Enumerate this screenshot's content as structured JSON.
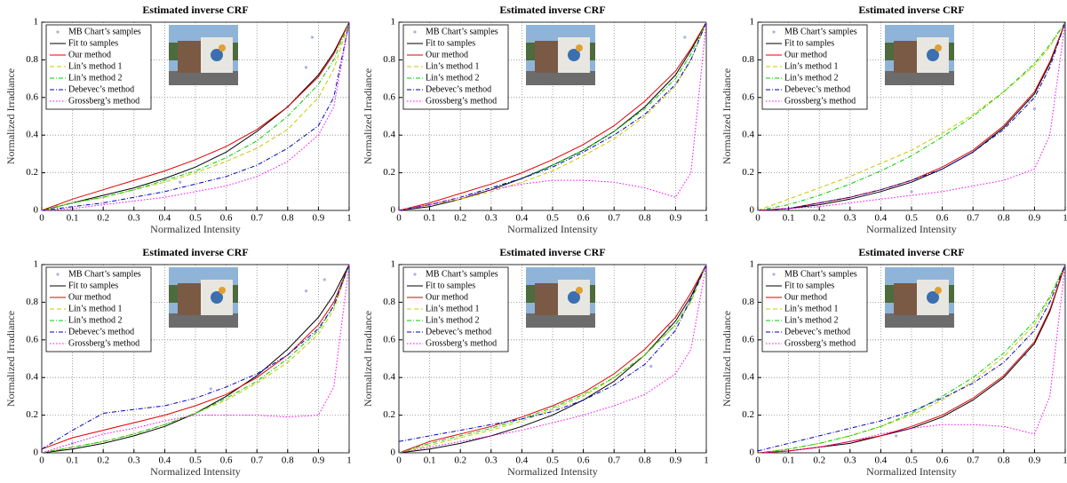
{
  "chart_data": [
    {
      "type": "line",
      "title": "Estimated inverse CRF",
      "xlabel": "Normalized Intensity",
      "ylabel": "Normalized Irradiance",
      "x": [
        0,
        0.1,
        0.2,
        0.3,
        0.4,
        0.5,
        0.6,
        0.7,
        0.8,
        0.9,
        0.95,
        1
      ],
      "xlim": [
        0,
        1
      ],
      "ylim": [
        0,
        1
      ],
      "xticks": [
        0,
        0.1,
        0.2,
        0.3,
        0.4,
        0.5,
        0.6,
        0.7,
        0.8,
        0.9,
        1
      ],
      "yticks": [
        0,
        0.2,
        0.4,
        0.6,
        0.8,
        1
      ],
      "grid": true,
      "legend": "upper-left",
      "series": [
        {
          "name": "MB Chart’s samples",
          "color": "#a8b0e8",
          "marker": "dot",
          "x": [
            0.05,
            0.45,
            0.8,
            0.86,
            0.88
          ],
          "values": [
            0.02,
            0.15,
            0.55,
            0.76,
            0.92
          ]
        },
        {
          "name": "Fit to samples",
          "color": "#000000",
          "dash": "solid",
          "values": [
            0,
            0.04,
            0.08,
            0.12,
            0.17,
            0.23,
            0.31,
            0.42,
            0.55,
            0.72,
            0.84,
            1
          ]
        },
        {
          "name": "Our method",
          "color": "#e00000",
          "dash": "solid",
          "values": [
            0,
            0.06,
            0.11,
            0.16,
            0.21,
            0.27,
            0.34,
            0.43,
            0.55,
            0.71,
            0.83,
            1
          ]
        },
        {
          "name": "Lin’s method 1",
          "color": "#c8c800",
          "dash": "dashed",
          "values": [
            0,
            0.04,
            0.07,
            0.11,
            0.15,
            0.2,
            0.26,
            0.33,
            0.43,
            0.6,
            0.75,
            1
          ]
        },
        {
          "name": "Lin’s method 2",
          "color": "#00cc00",
          "dash": "dashdot",
          "values": [
            0,
            0.04,
            0.07,
            0.11,
            0.16,
            0.21,
            0.28,
            0.37,
            0.5,
            0.67,
            0.8,
            1
          ]
        },
        {
          "name": "Debevec’s method",
          "color": "#0000c0",
          "dash": "dashdot",
          "values": [
            0,
            0.02,
            0.04,
            0.07,
            0.1,
            0.14,
            0.18,
            0.24,
            0.33,
            0.45,
            0.6,
            1
          ]
        },
        {
          "name": "Grossberg’s method",
          "color": "#ff00ff",
          "dash": "dotted",
          "values": [
            0,
            0.01,
            0.03,
            0.05,
            0.07,
            0.1,
            0.13,
            0.18,
            0.26,
            0.4,
            0.55,
            1
          ]
        }
      ]
    },
    {
      "type": "line",
      "title": "Estimated inverse CRF",
      "xlabel": "Normalized Intensity",
      "ylabel": "Normalized Irradiance",
      "x": [
        0,
        0.1,
        0.2,
        0.3,
        0.4,
        0.5,
        0.6,
        0.7,
        0.8,
        0.9,
        0.95,
        1
      ],
      "xlim": [
        0,
        1
      ],
      "ylim": [
        0,
        1
      ],
      "xticks": [
        0,
        0.1,
        0.2,
        0.3,
        0.4,
        0.5,
        0.6,
        0.7,
        0.8,
        0.9,
        1
      ],
      "yticks": [
        0,
        0.2,
        0.4,
        0.6,
        0.8,
        1
      ],
      "grid": true,
      "legend": "upper-left",
      "series": [
        {
          "name": "MB Chart’s samples",
          "color": "#a8b0e8",
          "marker": "dot",
          "x": [
            0.1,
            0.93
          ],
          "values": [
            0.03,
            0.92
          ]
        },
        {
          "name": "Fit to samples",
          "color": "#000000",
          "dash": "solid",
          "values": [
            0,
            0.02,
            0.06,
            0.11,
            0.17,
            0.24,
            0.32,
            0.42,
            0.55,
            0.72,
            0.85,
            1
          ]
        },
        {
          "name": "Our method",
          "color": "#e00000",
          "dash": "solid",
          "values": [
            0,
            0.04,
            0.09,
            0.14,
            0.2,
            0.27,
            0.35,
            0.45,
            0.58,
            0.74,
            0.86,
            1
          ]
        },
        {
          "name": "Lin’s method 1",
          "color": "#c8c800",
          "dash": "dashed",
          "values": [
            0,
            0.03,
            0.06,
            0.1,
            0.15,
            0.21,
            0.29,
            0.38,
            0.5,
            0.66,
            0.8,
            1
          ]
        },
        {
          "name": "Lin’s method 2",
          "color": "#00cc00",
          "dash": "dashdot",
          "values": [
            0,
            0.03,
            0.07,
            0.12,
            0.17,
            0.24,
            0.32,
            0.42,
            0.54,
            0.7,
            0.83,
            1
          ]
        },
        {
          "name": "Debevec’s method",
          "color": "#0000c0",
          "dash": "dashdot",
          "values": [
            0,
            0.03,
            0.07,
            0.12,
            0.17,
            0.23,
            0.31,
            0.4,
            0.51,
            0.67,
            0.8,
            1
          ]
        },
        {
          "name": "Grossberg’s method",
          "color": "#ff00ff",
          "dash": "dotted",
          "values": [
            0,
            0.03,
            0.07,
            0.11,
            0.14,
            0.16,
            0.16,
            0.15,
            0.12,
            0.07,
            0.2,
            1
          ]
        }
      ]
    },
    {
      "type": "line",
      "title": "Estimated inverse CRF",
      "xlabel": "Normalized Intensity",
      "ylabel": "Normalized Irradiance",
      "x": [
        0,
        0.1,
        0.2,
        0.3,
        0.4,
        0.5,
        0.6,
        0.7,
        0.8,
        0.9,
        0.95,
        1
      ],
      "xlim": [
        0,
        1
      ],
      "ylim": [
        0,
        1
      ],
      "xticks": [
        0,
        0.1,
        0.2,
        0.3,
        0.4,
        0.5,
        0.6,
        0.7,
        0.8,
        0.9,
        1
      ],
      "yticks": [
        0,
        0.2,
        0.4,
        0.6,
        0.8,
        1
      ],
      "grid": true,
      "legend": "upper-left",
      "series": [
        {
          "name": "MB Chart’s samples",
          "color": "#a8b0e8",
          "marker": "dot",
          "x": [
            0.5,
            0.88,
            0.9
          ],
          "values": [
            0.1,
            0.58,
            0.54
          ]
        },
        {
          "name": "Fit to samples",
          "color": "#000000",
          "dash": "solid",
          "values": [
            0,
            0.01,
            0.03,
            0.06,
            0.1,
            0.15,
            0.22,
            0.31,
            0.44,
            0.62,
            0.78,
            1
          ]
        },
        {
          "name": "Our method",
          "color": "#e00000",
          "dash": "solid",
          "values": [
            0,
            0.01,
            0.04,
            0.07,
            0.11,
            0.16,
            0.23,
            0.32,
            0.45,
            0.63,
            0.79,
            1
          ]
        },
        {
          "name": "Lin’s method 1",
          "color": "#c8c800",
          "dash": "dashed",
          "values": [
            0,
            0.06,
            0.12,
            0.18,
            0.25,
            0.32,
            0.41,
            0.51,
            0.63,
            0.77,
            0.87,
            1
          ]
        },
        {
          "name": "Lin’s method 2",
          "color": "#00cc00",
          "dash": "dashdot",
          "values": [
            0,
            0.03,
            0.08,
            0.14,
            0.21,
            0.29,
            0.39,
            0.5,
            0.63,
            0.78,
            0.88,
            1
          ]
        },
        {
          "name": "Debevec’s method",
          "color": "#0000c0",
          "dash": "dashdot",
          "values": [
            0,
            0.01,
            0.04,
            0.07,
            0.11,
            0.16,
            0.22,
            0.31,
            0.43,
            0.6,
            0.76,
            1
          ]
        },
        {
          "name": "Grossberg’s method",
          "color": "#ff00ff",
          "dash": "dotted",
          "values": [
            0,
            0.01,
            0.02,
            0.04,
            0.06,
            0.08,
            0.1,
            0.13,
            0.16,
            0.22,
            0.4,
            1
          ]
        }
      ]
    },
    {
      "type": "line",
      "title": "Estimated inverse CRF",
      "xlabel": "Normalized Intensity",
      "ylabel": "Normalized Irradiance",
      "x": [
        0,
        0.1,
        0.2,
        0.3,
        0.4,
        0.5,
        0.6,
        0.7,
        0.8,
        0.9,
        0.95,
        1
      ],
      "xlim": [
        0,
        1
      ],
      "ylim": [
        0,
        1
      ],
      "xticks": [
        0,
        0.1,
        0.2,
        0.3,
        0.4,
        0.5,
        0.6,
        0.7,
        0.8,
        0.9,
        1
      ],
      "yticks": [
        0,
        0.2,
        0.4,
        0.6,
        0.8,
        1
      ],
      "grid": true,
      "legend": "upper-left",
      "series": [
        {
          "name": "MB Chart’s samples",
          "color": "#a8b0e8",
          "marker": "dot",
          "x": [
            0.1,
            0.55,
            0.86,
            0.92
          ],
          "values": [
            0.05,
            0.34,
            0.86,
            0.92
          ]
        },
        {
          "name": "Fit to samples",
          "color": "#000000",
          "dash": "solid",
          "values": [
            0,
            0.02,
            0.05,
            0.09,
            0.14,
            0.21,
            0.3,
            0.41,
            0.55,
            0.72,
            0.84,
            1
          ]
        },
        {
          "name": "Our method",
          "color": "#e00000",
          "dash": "solid",
          "values": [
            0.02,
            0.08,
            0.12,
            0.16,
            0.2,
            0.25,
            0.31,
            0.4,
            0.52,
            0.68,
            0.8,
            1
          ]
        },
        {
          "name": "Lin’s method 1",
          "color": "#c8c800",
          "dash": "dashed",
          "values": [
            0,
            0.03,
            0.06,
            0.1,
            0.15,
            0.21,
            0.28,
            0.37,
            0.48,
            0.63,
            0.76,
            1
          ]
        },
        {
          "name": "Lin’s method 2",
          "color": "#00cc00",
          "dash": "dashdot",
          "values": [
            0,
            0.03,
            0.06,
            0.1,
            0.15,
            0.21,
            0.29,
            0.38,
            0.5,
            0.65,
            0.78,
            1
          ]
        },
        {
          "name": "Debevec’s method",
          "color": "#0000c0",
          "dash": "dashdot",
          "values": [
            0.02,
            0.12,
            0.21,
            0.23,
            0.25,
            0.29,
            0.35,
            0.42,
            0.52,
            0.66,
            0.78,
            1
          ]
        },
        {
          "name": "Grossberg’s method",
          "color": "#ff00ff",
          "dash": "dotted",
          "values": [
            0,
            0.05,
            0.1,
            0.13,
            0.17,
            0.2,
            0.2,
            0.2,
            0.19,
            0.2,
            0.35,
            1
          ]
        }
      ]
    },
    {
      "type": "line",
      "title": "Estimated inverse CRF",
      "xlabel": "Normalized Intensity",
      "ylabel": "Normalized Irradiance",
      "x": [
        0,
        0.1,
        0.2,
        0.3,
        0.4,
        0.5,
        0.6,
        0.7,
        0.8,
        0.9,
        0.95,
        1
      ],
      "xlim": [
        0,
        1
      ],
      "ylim": [
        0,
        1
      ],
      "xticks": [
        0,
        0.1,
        0.2,
        0.3,
        0.4,
        0.5,
        0.6,
        0.7,
        0.8,
        0.9,
        1
      ],
      "yticks": [
        0,
        0.2,
        0.4,
        0.6,
        0.8,
        1
      ],
      "grid": true,
      "legend": "upper-left",
      "series": [
        {
          "name": "MB Chart’s samples",
          "color": "#a8b0e8",
          "marker": "dot",
          "x": [
            0.82,
            0.88
          ],
          "values": [
            0.46,
            0.67
          ]
        },
        {
          "name": "Fit to samples",
          "color": "#000000",
          "dash": "solid",
          "values": [
            0,
            0.02,
            0.05,
            0.09,
            0.14,
            0.2,
            0.28,
            0.38,
            0.52,
            0.7,
            0.83,
            1
          ]
        },
        {
          "name": "Our method",
          "color": "#e00000",
          "dash": "solid",
          "values": [
            0,
            0.06,
            0.1,
            0.14,
            0.19,
            0.25,
            0.32,
            0.42,
            0.55,
            0.72,
            0.85,
            1
          ]
        },
        {
          "name": "Lin’s method 1",
          "color": "#c8c800",
          "dash": "dashed",
          "values": [
            0,
            0.04,
            0.08,
            0.12,
            0.17,
            0.23,
            0.3,
            0.4,
            0.52,
            0.68,
            0.8,
            1
          ]
        },
        {
          "name": "Lin’s method 2",
          "color": "#00cc00",
          "dash": "dashdot",
          "values": [
            0,
            0.05,
            0.09,
            0.13,
            0.18,
            0.24,
            0.31,
            0.4,
            0.52,
            0.68,
            0.81,
            1
          ]
        },
        {
          "name": "Debevec’s method",
          "color": "#0000c0",
          "dash": "dashdot",
          "values": [
            0.06,
            0.09,
            0.12,
            0.15,
            0.18,
            0.22,
            0.28,
            0.36,
            0.47,
            0.65,
            0.82,
            1
          ]
        },
        {
          "name": "Grossberg’s method",
          "color": "#ff00ff",
          "dash": "dotted",
          "values": [
            0,
            0.03,
            0.06,
            0.09,
            0.12,
            0.16,
            0.2,
            0.25,
            0.31,
            0.42,
            0.55,
            1
          ]
        }
      ]
    },
    {
      "type": "line",
      "title": "Estimated inverse CRF",
      "xlabel": "Normalized Intensity",
      "ylabel": "Normalized Irradiance",
      "x": [
        0,
        0.1,
        0.2,
        0.3,
        0.4,
        0.5,
        0.6,
        0.7,
        0.8,
        0.9,
        0.95,
        1
      ],
      "xlim": [
        0,
        1
      ],
      "ylim": [
        0,
        1
      ],
      "xticks": [
        0,
        0.1,
        0.2,
        0.3,
        0.4,
        0.5,
        0.6,
        0.7,
        0.8,
        0.9,
        1
      ],
      "yticks": [
        0,
        0.2,
        0.4,
        0.6,
        0.8,
        1
      ],
      "grid": true,
      "legend": "upper-left",
      "series": [
        {
          "name": "MB Chart’s samples",
          "color": "#a8b0e8",
          "marker": "dot",
          "x": [
            0.45,
            0.87
          ],
          "values": [
            0.09,
            0.52
          ]
        },
        {
          "name": "Fit to samples",
          "color": "#000000",
          "dash": "solid",
          "values": [
            0,
            0.01,
            0.03,
            0.05,
            0.09,
            0.13,
            0.19,
            0.28,
            0.4,
            0.58,
            0.75,
            1
          ]
        },
        {
          "name": "Our method",
          "color": "#e00000",
          "dash": "solid",
          "values": [
            0,
            0.01,
            0.03,
            0.06,
            0.09,
            0.14,
            0.2,
            0.29,
            0.41,
            0.59,
            0.76,
            1
          ]
        },
        {
          "name": "Lin’s method 1",
          "color": "#c8c800",
          "dash": "dashed",
          "values": [
            0,
            0.02,
            0.05,
            0.09,
            0.14,
            0.2,
            0.28,
            0.38,
            0.51,
            0.68,
            0.82,
            1
          ]
        },
        {
          "name": "Lin’s method 2",
          "color": "#00cc00",
          "dash": "dashdot",
          "values": [
            0,
            0.02,
            0.05,
            0.09,
            0.14,
            0.21,
            0.3,
            0.4,
            0.53,
            0.7,
            0.83,
            1
          ]
        },
        {
          "name": "Debevec’s method",
          "color": "#0000c0",
          "dash": "dashdot",
          "values": [
            0.01,
            0.05,
            0.09,
            0.13,
            0.17,
            0.22,
            0.29,
            0.37,
            0.48,
            0.65,
            0.8,
            1
          ]
        },
        {
          "name": "Grossberg’s method",
          "color": "#ff00ff",
          "dash": "dotted",
          "values": [
            0,
            0.01,
            0.03,
            0.06,
            0.1,
            0.13,
            0.15,
            0.15,
            0.14,
            0.1,
            0.3,
            1
          ]
        }
      ]
    }
  ]
}
